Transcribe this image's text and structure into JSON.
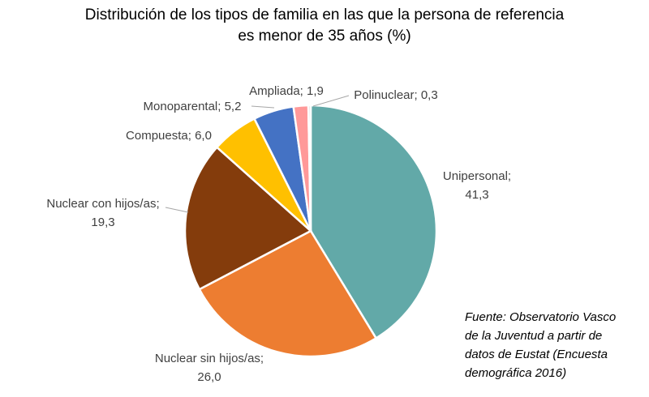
{
  "chart_data": {
    "type": "pie",
    "title_lines": [
      "Distribución de los tipos de familia en las que la persona de referencia",
      "es menor de 35 años (%)"
    ],
    "start_angle": "top, clockwise",
    "slices": [
      {
        "label": "Unipersonal",
        "value": 41.3,
        "value_text": "41,3",
        "color": "#62A9A8"
      },
      {
        "label": "Nuclear sin hijos/as",
        "value": 26.0,
        "value_text": "26,0",
        "color": "#ED7D31"
      },
      {
        "label": "Nuclear con hijos/as",
        "value": 19.3,
        "value_text": "19,3",
        "color": "#843C0C"
      },
      {
        "label": "Compuesta",
        "value": 6.0,
        "value_text": "6,0",
        "color": "#FFC000"
      },
      {
        "label": "Monoparental",
        "value": 5.2,
        "value_text": "5,2",
        "color": "#4472C4"
      },
      {
        "label": "Ampliada",
        "value": 1.9,
        "value_text": "1,9",
        "color": "#FF9999"
      },
      {
        "label": "Polinuclear",
        "value": 0.3,
        "value_text": "0,3",
        "color": "#C9C9C9"
      }
    ],
    "source_lines": [
      "Fuente: Observatorio Vasco",
      "de la Juventud a partir de",
      "datos de Eustat (Encuesta",
      "demográfica 2016)"
    ]
  }
}
